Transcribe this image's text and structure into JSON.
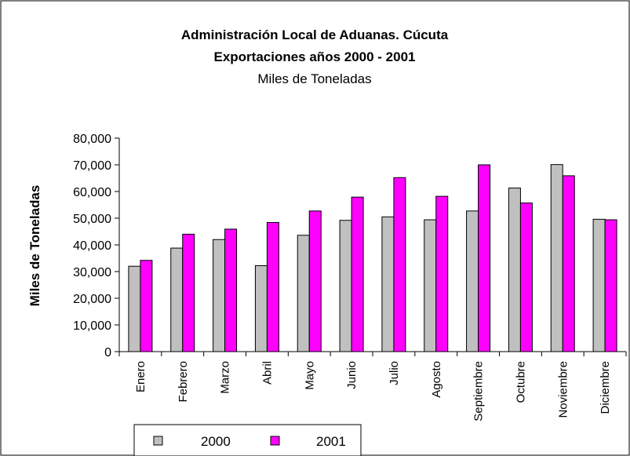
{
  "chart_data": {
    "type": "bar",
    "title": "Administración Local de Aduanas. Cúcuta",
    "title_line2": "Exportaciones años 2000 - 2001",
    "subtitle": "Miles de Toneladas",
    "xlabel": "",
    "ylabel": "Miles de Toneladas",
    "ylim": [
      0,
      80000
    ],
    "ytick_step": 10000,
    "yticks": [
      "0",
      "10,000",
      "20,000",
      "30,000",
      "40,000",
      "50,000",
      "60,000",
      "70,000",
      "80,000"
    ],
    "categories": [
      "Enero",
      "Febrero",
      "Marzo",
      "Abril",
      "Mayo",
      "Junio",
      "Julio",
      "Agosto",
      "Septiembre",
      "Octubre",
      "Noviembre",
      "Diciembre"
    ],
    "series": [
      {
        "name": "2000",
        "color": "#c0c0c0",
        "values": [
          32000,
          38800,
          42000,
          32200,
          43600,
          49200,
          50500,
          49400,
          52700,
          61300,
          70100,
          49600
        ]
      },
      {
        "name": "2001",
        "color": "#ff00ff",
        "values": [
          34200,
          44000,
          45900,
          48400,
          52700,
          57900,
          65200,
          58200,
          70000,
          55700,
          65900,
          49400
        ]
      }
    ],
    "grid": false,
    "legend_position": "bottom-left"
  }
}
